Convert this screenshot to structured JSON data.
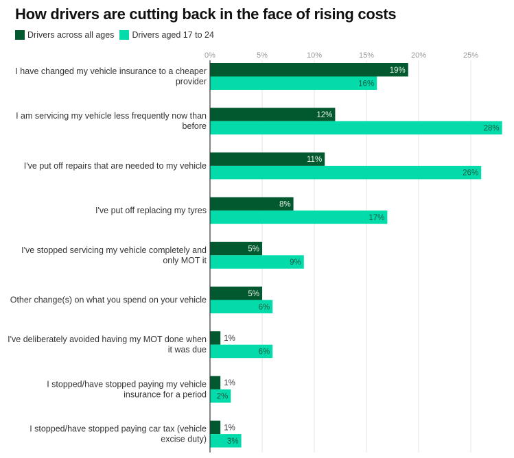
{
  "chart_data": {
    "type": "bar",
    "orientation": "horizontal",
    "title": "How drivers are cutting back in the face of rising costs",
    "xlabel": "",
    "ylabel": "",
    "xlim": [
      0,
      28
    ],
    "x_ticks": [
      "0%",
      "5%",
      "10%",
      "15%",
      "20%",
      "25%"
    ],
    "x_tick_values": [
      0,
      5,
      10,
      15,
      20,
      25
    ],
    "grid": true,
    "legend_position": "top-left",
    "categories": [
      [
        "I have changed my vehicle insurance to a cheaper",
        "provider"
      ],
      [
        "I am servicing my vehicle less frequently now than",
        "before"
      ],
      [
        "I've put off repairs that are needed to my vehicle"
      ],
      [
        "I've put off replacing my tyres"
      ],
      [
        "I've stopped servicing my vehicle completely and",
        "only MOT it"
      ],
      [
        "Other change(s) on what you spend on your vehicle"
      ],
      [
        "I've deliberately avoided having my MOT done when",
        "it was due"
      ],
      [
        "I stopped/have stopped paying my vehicle",
        "insurance for a period"
      ],
      [
        "I stopped/have stopped paying car tax (vehicle",
        "excise duty)"
      ]
    ],
    "series": [
      {
        "name": "Drivers across all ages",
        "color": "#02592f",
        "label_color": "#e6f2ea",
        "values": [
          19,
          12,
          11,
          8,
          5,
          5,
          1,
          1,
          1
        ],
        "labels": [
          "19%",
          "12%",
          "11%",
          "8%",
          "5%",
          "5%",
          "1%",
          "1%",
          "1%"
        ]
      },
      {
        "name": "Drivers aged 17 to 24",
        "color": "#03dcaa",
        "label_color": "#1a5a44",
        "values": [
          16,
          28,
          26,
          17,
          9,
          6,
          6,
          2,
          3
        ],
        "labels": [
          "16%",
          "28%",
          "26%",
          "17%",
          "9%",
          "6%",
          "6%",
          "2%",
          "3%"
        ]
      }
    ],
    "outside_label_color": "#333333"
  }
}
